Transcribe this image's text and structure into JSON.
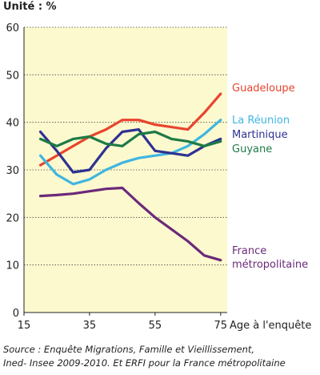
{
  "unit_label": "Unité : %",
  "source": {
    "line1": "Source : Enquête Migrations, Famille et Vieillissement,",
    "line2": "Ined- Insee 2009-2010. Et ERFI pour la France métropolitaine"
  },
  "chart_data": {
    "type": "line",
    "xlabel": "Age à l'enquête",
    "ylabel": "Unité : %",
    "xlim": [
      15,
      77
    ],
    "ylim": [
      0,
      60
    ],
    "x_ticks": [
      15,
      35,
      55,
      75
    ],
    "y_ticks": [
      0,
      10,
      20,
      30,
      40,
      50,
      60
    ],
    "grid": "horizontal",
    "plot_background": "#fdf9cf",
    "series": [
      {
        "name": "Guadeloupe",
        "color": "#e8442e",
        "label_lines": [
          "Guadeloupe"
        ],
        "x": [
          20,
          25,
          30,
          35,
          40,
          45,
          50,
          55,
          60,
          65,
          70,
          75
        ],
        "values": [
          31,
          33,
          35,
          37,
          38.5,
          40.5,
          40.5,
          39.5,
          39,
          38.5,
          42,
          46
        ]
      },
      {
        "name": "La Réunion",
        "color": "#3fb6e0",
        "label_lines": [
          "La Réunion"
        ],
        "x": [
          20,
          25,
          30,
          35,
          40,
          45,
          50,
          55,
          60,
          65,
          70,
          75
        ],
        "values": [
          33,
          29,
          27,
          28,
          30,
          31.5,
          32.5,
          33,
          33.5,
          35,
          37.5,
          40.5
        ]
      },
      {
        "name": "Martinique",
        "color": "#2e3192",
        "label_lines": [
          "Martinique"
        ],
        "x": [
          20,
          25,
          30,
          35,
          40,
          45,
          50,
          55,
          60,
          65,
          70,
          75
        ],
        "values": [
          38,
          34,
          29.5,
          30,
          34.5,
          38,
          38.5,
          34,
          33.5,
          33,
          35,
          36.5
        ]
      },
      {
        "name": "Guyane",
        "color": "#1e7a46",
        "label_lines": [
          "Guyane"
        ],
        "x": [
          20,
          25,
          30,
          35,
          40,
          45,
          50,
          55,
          60,
          65,
          70,
          75
        ],
        "values": [
          36.5,
          35,
          36.5,
          37,
          35.5,
          35,
          37.5,
          38,
          36.5,
          36,
          35,
          36
        ]
      },
      {
        "name": "France métropolitaine",
        "color": "#6b2a7a",
        "label_lines": [
          "France",
          "métropolitaine"
        ],
        "x": [
          20,
          25,
          30,
          35,
          40,
          45,
          50,
          55,
          60,
          65,
          70,
          75
        ],
        "values": [
          24.5,
          24.7,
          25,
          25.5,
          26,
          26.2,
          23,
          20,
          17.5,
          15,
          12,
          11
        ]
      }
    ]
  }
}
